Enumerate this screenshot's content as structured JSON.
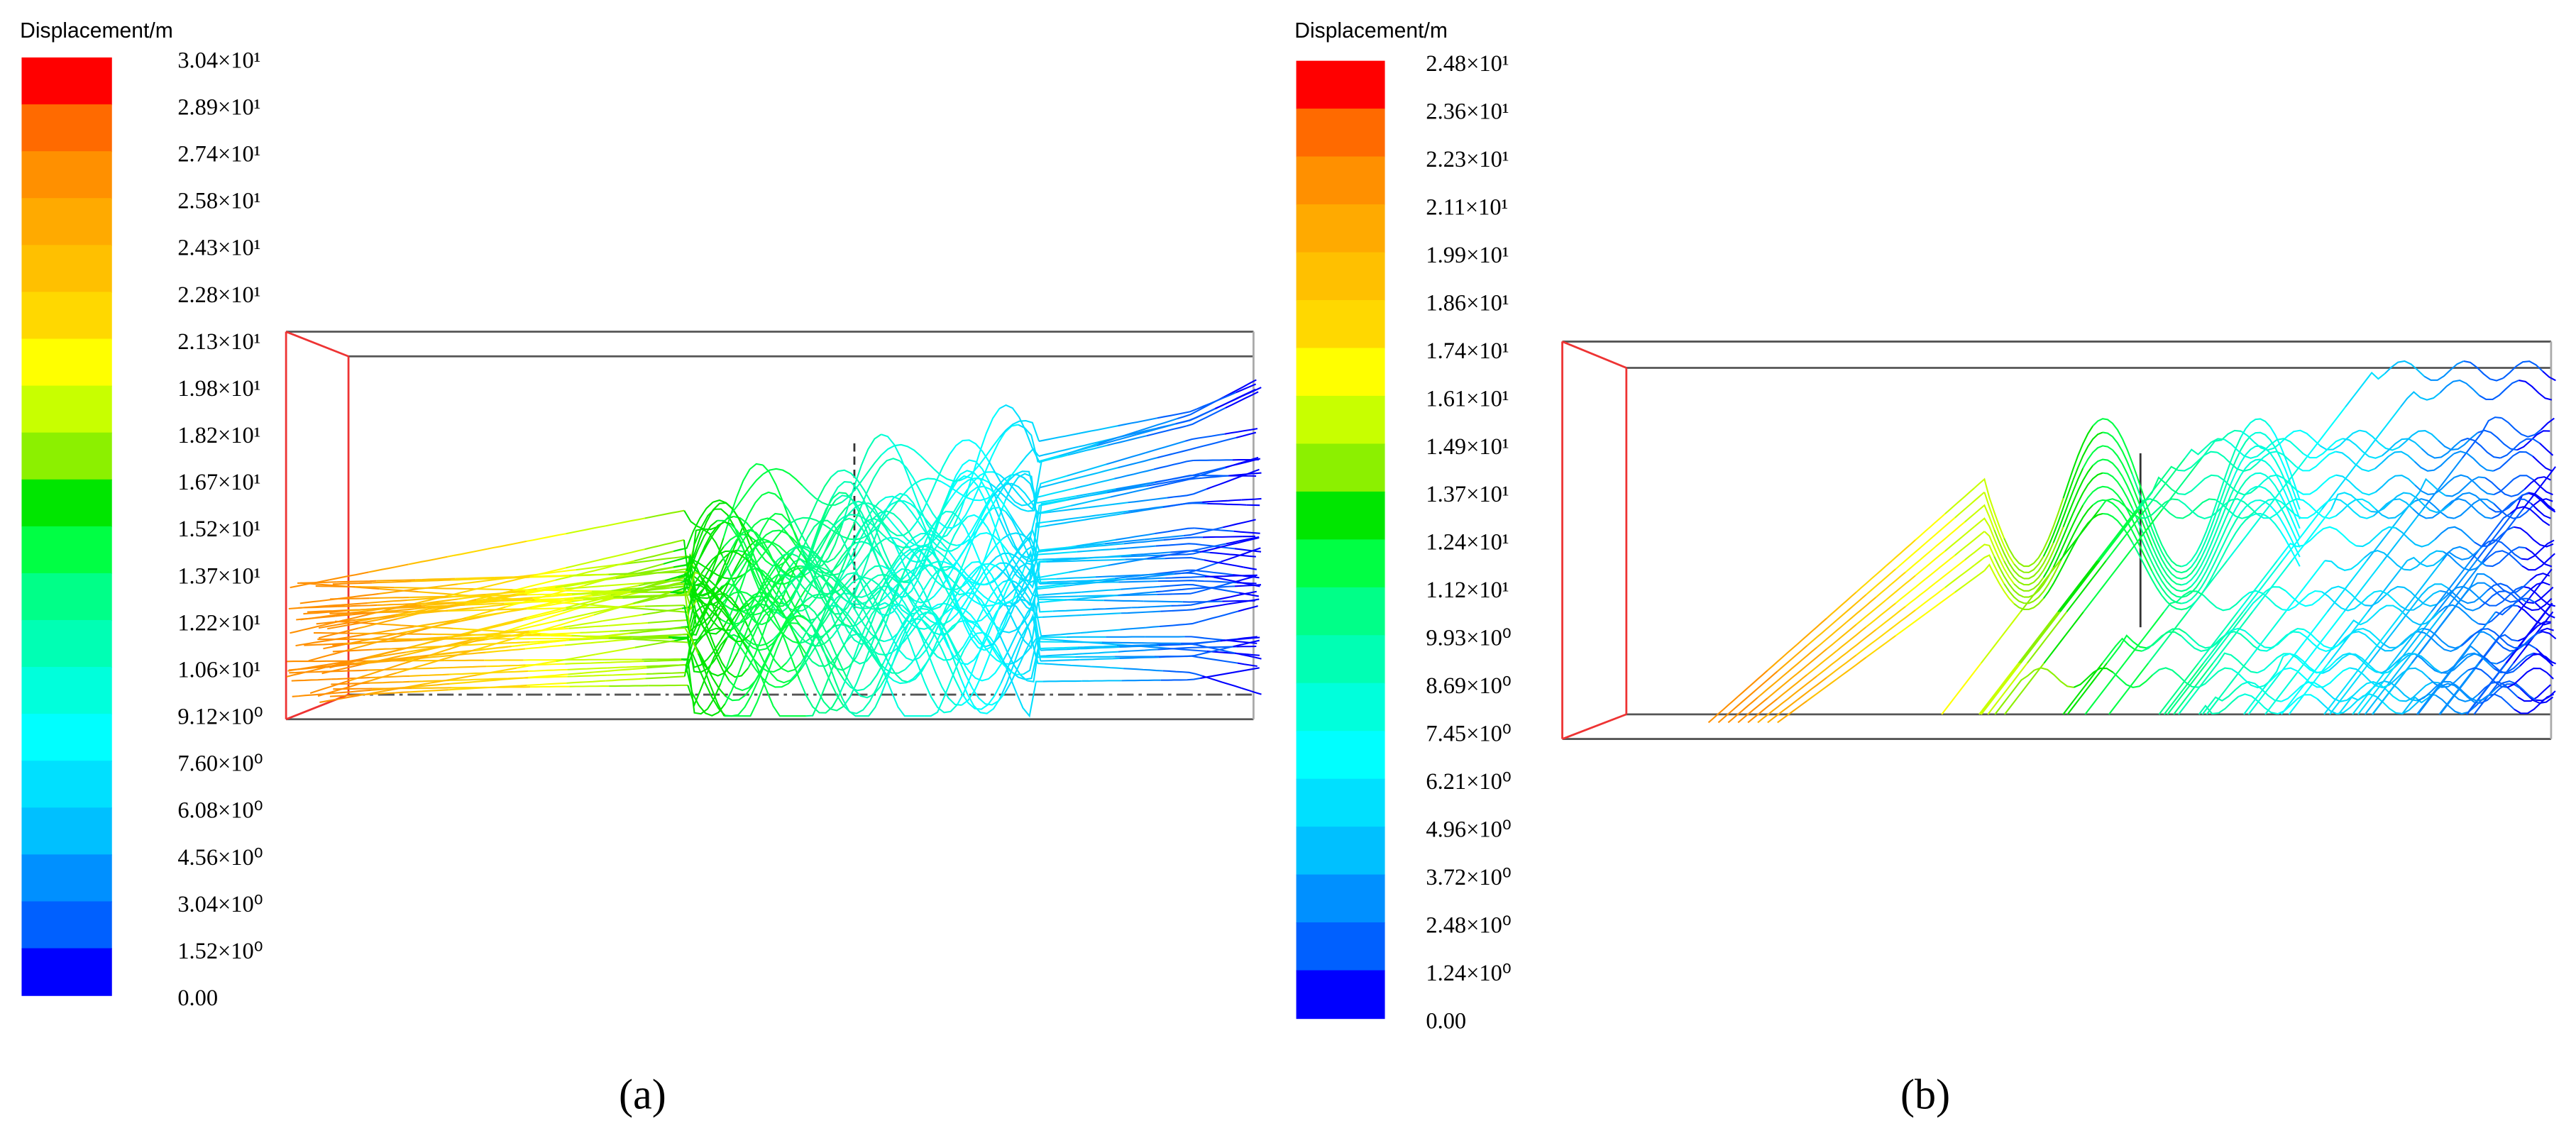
{
  "panels": [
    {
      "legend": {
        "title": "Displacement/m",
        "labels": [
          "3.04×10¹",
          "2.89×10¹",
          "2.74×10¹",
          "2.58×10¹",
          "2.43×10¹",
          "2.28×10¹",
          "2.13×10¹",
          "1.98×10¹",
          "1.82×10¹",
          "1.67×10¹",
          "1.52×10¹",
          "1.37×10¹",
          "1.22×10¹",
          "1.06×10¹",
          "9.12×10⁰",
          "7.60×10⁰",
          "6.08×10⁰",
          "4.56×10⁰",
          "3.04×10⁰",
          "1.52×10⁰",
          "0.00"
        ],
        "colors": [
          "#ff0000",
          "#ff6a00",
          "#ff9000",
          "#ffaa00",
          "#ffc000",
          "#ffd800",
          "#ffff00",
          "#c8ff00",
          "#8cf000",
          "#00e600",
          "#00ff44",
          "#00ff88",
          "#00ffb4",
          "#00ffdc",
          "#00ffff",
          "#00e0ff",
          "#00c0ff",
          "#0090ff",
          "#0060ff",
          "#0000ff"
        ]
      },
      "caption": "(a)"
    },
    {
      "legend": {
        "title": "Displacement/m",
        "labels": [
          "2.48×10¹",
          "2.36×10¹",
          "2.23×10¹",
          "2.11×10¹",
          "1.99×10¹",
          "1.86×10¹",
          "1.74×10¹",
          "1.61×10¹",
          "1.49×10¹",
          "1.37×10¹",
          "1.24×10¹",
          "1.12×10¹",
          "9.93×10⁰",
          "8.69×10⁰",
          "7.45×10⁰",
          "6.21×10⁰",
          "4.96×10⁰",
          "3.72×10⁰",
          "2.48×10⁰",
          "1.24×10⁰",
          "0.00"
        ],
        "colors": [
          "#ff0000",
          "#ff6a00",
          "#ff9000",
          "#ffaa00",
          "#ffc000",
          "#ffd800",
          "#ffff00",
          "#c8ff00",
          "#8cf000",
          "#00e600",
          "#00ff44",
          "#00ff88",
          "#00ffb4",
          "#00ffdc",
          "#00ffff",
          "#00e0ff",
          "#00c0ff",
          "#0090ff",
          "#0060ff",
          "#0000ff"
        ]
      },
      "caption": "(b)"
    }
  ]
}
